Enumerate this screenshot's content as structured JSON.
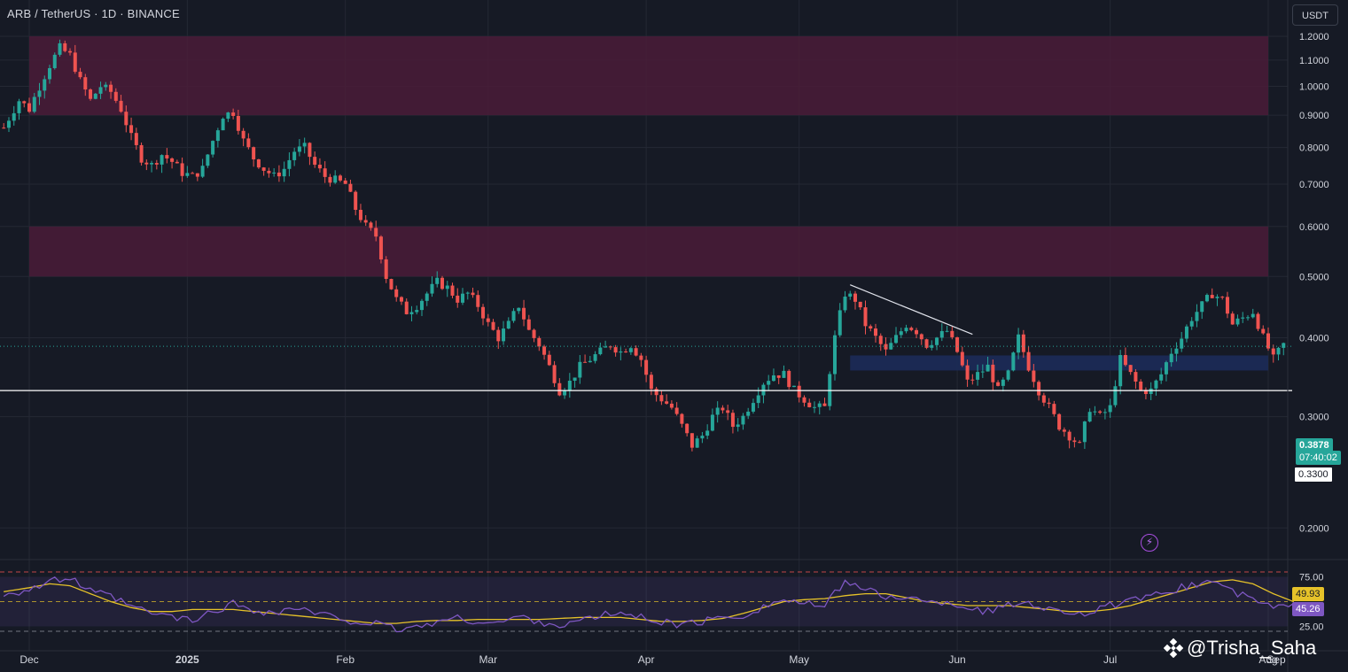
{
  "header": {
    "symbol_title": "ARB / TetherUS · 1D · BINANCE",
    "currency_button": "USDT"
  },
  "watermark": {
    "text": "@Trisha_Saha",
    "icon": "binance-diamond-icon"
  },
  "colors": {
    "background": "#161a25",
    "up_candle": "#26a69a",
    "down_candle": "#ef5350",
    "resistance_zone": "#4a1c38",
    "support_zone": "#1b2a55",
    "rsi_line": "#7e57c2",
    "rsi_ma_line": "#e6c229",
    "key_level_line": "#ffffff"
  },
  "price_badges": {
    "last_price": "0.3878",
    "countdown": "07:40:02",
    "key_level": "0.3300",
    "rsi_ma_value": "49.93",
    "rsi_value": "45.26"
  },
  "chart_data": {
    "type": "candlestick",
    "pair": "ARB/USDT",
    "timeframe": "1D",
    "exchange": "BINANCE",
    "y_axis": {
      "scale": "log",
      "range": [
        0.175,
        1.28
      ],
      "ticks": [
        "1.2000",
        "1.1000",
        "1.0000",
        "0.9000",
        "0.8000",
        "0.7000",
        "0.6000",
        "0.5000",
        "0.4000",
        "0.3000",
        "0.2000"
      ]
    },
    "x_axis": {
      "ticks": [
        "Dec",
        "2025",
        "Feb",
        "Mar",
        "Apr",
        "May",
        "Jun",
        "Jul",
        "Aug",
        "Sep"
      ]
    },
    "x_range_days": [
      0,
      258
    ],
    "key_level": 0.33,
    "zones": [
      {
        "name": "",
        "type": "resistance",
        "low": 0.9,
        "high": 1.2,
        "from_day": 0,
        "to_day": 243
      },
      {
        "name": "",
        "type": "resistance",
        "low": 0.5,
        "high": 0.6,
        "from_day": 0,
        "to_day": 243
      },
      {
        "name": "",
        "type": "support",
        "low": 0.355,
        "high": 0.375,
        "from_day": 161,
        "to_day": 243
      }
    ],
    "trendline": {
      "from": {
        "day": 161,
        "price": 0.485
      },
      "to": {
        "day": 185,
        "price": 0.405
      }
    },
    "close_path": [
      [
        -5,
        0.86
      ],
      [
        -2,
        0.95
      ],
      [
        0,
        0.92
      ],
      [
        2,
        1.0
      ],
      [
        4,
        1.08
      ],
      [
        6,
        1.15
      ],
      [
        8,
        1.12
      ],
      [
        10,
        1.02
      ],
      [
        12,
        0.95
      ],
      [
        14,
        1.0
      ],
      [
        16,
        0.98
      ],
      [
        18,
        0.92
      ],
      [
        20,
        0.83
      ],
      [
        22,
        0.77
      ],
      [
        24,
        0.75
      ],
      [
        26,
        0.78
      ],
      [
        28,
        0.76
      ],
      [
        30,
        0.73
      ],
      [
        32,
        0.72
      ],
      [
        34,
        0.74
      ],
      [
        36,
        0.82
      ],
      [
        38,
        0.9
      ],
      [
        40,
        0.91
      ],
      [
        42,
        0.82
      ],
      [
        44,
        0.77
      ],
      [
        46,
        0.74
      ],
      [
        48,
        0.72
      ],
      [
        50,
        0.74
      ],
      [
        52,
        0.79
      ],
      [
        54,
        0.8
      ],
      [
        56,
        0.75
      ],
      [
        58,
        0.72
      ],
      [
        60,
        0.71
      ],
      [
        62,
        0.7
      ],
      [
        64,
        0.64
      ],
      [
        66,
        0.6
      ],
      [
        68,
        0.58
      ],
      [
        70,
        0.5
      ],
      [
        72,
        0.46
      ],
      [
        74,
        0.44
      ],
      [
        76,
        0.45
      ],
      [
        78,
        0.47
      ],
      [
        80,
        0.49
      ],
      [
        82,
        0.48
      ],
      [
        84,
        0.46
      ],
      [
        86,
        0.47
      ],
      [
        88,
        0.45
      ],
      [
        90,
        0.42
      ],
      [
        92,
        0.4
      ],
      [
        94,
        0.42
      ],
      [
        96,
        0.45
      ],
      [
        98,
        0.41
      ],
      [
        100,
        0.39
      ],
      [
        102,
        0.36
      ],
      [
        104,
        0.33
      ],
      [
        106,
        0.34
      ],
      [
        108,
        0.36
      ],
      [
        110,
        0.37
      ],
      [
        112,
        0.38
      ],
      [
        114,
        0.39
      ],
      [
        116,
        0.38
      ],
      [
        118,
        0.39
      ],
      [
        120,
        0.37
      ],
      [
        122,
        0.33
      ],
      [
        124,
        0.32
      ],
      [
        126,
        0.31
      ],
      [
        128,
        0.29
      ],
      [
        130,
        0.27
      ],
      [
        132,
        0.28
      ],
      [
        134,
        0.3
      ],
      [
        136,
        0.31
      ],
      [
        138,
        0.29
      ],
      [
        140,
        0.3
      ],
      [
        142,
        0.32
      ],
      [
        144,
        0.34
      ],
      [
        146,
        0.35
      ],
      [
        148,
        0.35
      ],
      [
        150,
        0.33
      ],
      [
        152,
        0.32
      ],
      [
        154,
        0.31
      ],
      [
        156,
        0.31
      ],
      [
        158,
        0.4
      ],
      [
        160,
        0.47
      ],
      [
        162,
        0.46
      ],
      [
        164,
        0.42
      ],
      [
        166,
        0.4
      ],
      [
        168,
        0.38
      ],
      [
        170,
        0.4
      ],
      [
        172,
        0.42
      ],
      [
        174,
        0.41
      ],
      [
        176,
        0.39
      ],
      [
        178,
        0.4
      ],
      [
        180,
        0.41
      ],
      [
        182,
        0.38
      ],
      [
        184,
        0.34
      ],
      [
        186,
        0.35
      ],
      [
        188,
        0.36
      ],
      [
        190,
        0.33
      ],
      [
        192,
        0.35
      ],
      [
        194,
        0.4
      ],
      [
        196,
        0.36
      ],
      [
        198,
        0.33
      ],
      [
        200,
        0.31
      ],
      [
        202,
        0.29
      ],
      [
        204,
        0.28
      ],
      [
        206,
        0.27
      ],
      [
        208,
        0.31
      ],
      [
        210,
        0.3
      ],
      [
        212,
        0.31
      ],
      [
        214,
        0.37
      ],
      [
        216,
        0.35
      ],
      [
        218,
        0.33
      ],
      [
        220,
        0.33
      ],
      [
        222,
        0.35
      ],
      [
        224,
        0.38
      ],
      [
        226,
        0.4
      ],
      [
        228,
        0.43
      ],
      [
        230,
        0.45
      ],
      [
        232,
        0.47
      ],
      [
        234,
        0.46
      ],
      [
        236,
        0.42
      ],
      [
        238,
        0.43
      ],
      [
        240,
        0.44
      ],
      [
        242,
        0.4
      ],
      [
        244,
        0.37
      ],
      [
        246,
        0.39
      ],
      [
        248,
        0.3878
      ]
    ],
    "rsi": {
      "levels": [
        75,
        25
      ],
      "midline": 50,
      "tick_labels": [
        "75.00",
        "25.00"
      ],
      "rsi_current": 45.26,
      "ma_current": 49.93,
      "rsi_path": [
        [
          -5,
          58
        ],
        [
          0,
          62
        ],
        [
          4,
          70
        ],
        [
          8,
          74
        ],
        [
          12,
          60
        ],
        [
          16,
          55
        ],
        [
          20,
          45
        ],
        [
          24,
          38
        ],
        [
          28,
          35
        ],
        [
          32,
          30
        ],
        [
          36,
          40
        ],
        [
          40,
          48
        ],
        [
          44,
          42
        ],
        [
          48,
          38
        ],
        [
          52,
          44
        ],
        [
          56,
          38
        ],
        [
          60,
          34
        ],
        [
          64,
          30
        ],
        [
          68,
          27
        ],
        [
          72,
          22
        ],
        [
          76,
          24
        ],
        [
          80,
          30
        ],
        [
          84,
          33
        ],
        [
          88,
          30
        ],
        [
          92,
          28
        ],
        [
          96,
          35
        ],
        [
          100,
          30
        ],
        [
          104,
          26
        ],
        [
          108,
          30
        ],
        [
          112,
          36
        ],
        [
          116,
          38
        ],
        [
          120,
          34
        ],
        [
          124,
          30
        ],
        [
          128,
          26
        ],
        [
          132,
          30
        ],
        [
          136,
          34
        ],
        [
          140,
          36
        ],
        [
          144,
          45
        ],
        [
          148,
          52
        ],
        [
          152,
          48
        ],
        [
          156,
          44
        ],
        [
          160,
          72
        ],
        [
          164,
          62
        ],
        [
          168,
          54
        ],
        [
          172,
          56
        ],
        [
          176,
          48
        ],
        [
          180,
          50
        ],
        [
          184,
          44
        ],
        [
          188,
          40
        ],
        [
          192,
          46
        ],
        [
          196,
          50
        ],
        [
          200,
          42
        ],
        [
          204,
          40
        ],
        [
          208,
          38
        ],
        [
          212,
          46
        ],
        [
          216,
          50
        ],
        [
          220,
          54
        ],
        [
          224,
          62
        ],
        [
          228,
          66
        ],
        [
          232,
          72
        ],
        [
          236,
          60
        ],
        [
          240,
          52
        ],
        [
          244,
          44
        ],
        [
          248,
          45.26
        ]
      ],
      "ma_path": [
        [
          -5,
          60
        ],
        [
          0,
          64
        ],
        [
          4,
          68
        ],
        [
          8,
          66
        ],
        [
          12,
          58
        ],
        [
          16,
          50
        ],
        [
          20,
          44
        ],
        [
          24,
          40
        ],
        [
          28,
          40
        ],
        [
          32,
          42
        ],
        [
          36,
          42
        ],
        [
          40,
          42
        ],
        [
          44,
          40
        ],
        [
          48,
          38
        ],
        [
          52,
          36
        ],
        [
          56,
          34
        ],
        [
          60,
          32
        ],
        [
          64,
          30
        ],
        [
          68,
          28
        ],
        [
          72,
          28
        ],
        [
          76,
          30
        ],
        [
          80,
          31
        ],
        [
          84,
          31
        ],
        [
          88,
          32
        ],
        [
          92,
          32
        ],
        [
          96,
          32
        ],
        [
          100,
          32
        ],
        [
          104,
          33
        ],
        [
          108,
          34
        ],
        [
          112,
          34
        ],
        [
          116,
          34
        ],
        [
          120,
          32
        ],
        [
          124,
          30
        ],
        [
          128,
          30
        ],
        [
          132,
          31
        ],
        [
          136,
          33
        ],
        [
          140,
          38
        ],
        [
          144,
          44
        ],
        [
          148,
          50
        ],
        [
          152,
          52
        ],
        [
          156,
          53
        ],
        [
          160,
          56
        ],
        [
          164,
          58
        ],
        [
          168,
          58
        ],
        [
          172,
          54
        ],
        [
          176,
          50
        ],
        [
          180,
          48
        ],
        [
          184,
          46
        ],
        [
          188,
          46
        ],
        [
          192,
          46
        ],
        [
          196,
          44
        ],
        [
          200,
          42
        ],
        [
          204,
          40
        ],
        [
          208,
          40
        ],
        [
          212,
          42
        ],
        [
          216,
          46
        ],
        [
          220,
          52
        ],
        [
          224,
          58
        ],
        [
          228,
          64
        ],
        [
          232,
          70
        ],
        [
          236,
          72
        ],
        [
          240,
          68
        ],
        [
          244,
          58
        ],
        [
          248,
          49.93
        ]
      ]
    }
  }
}
